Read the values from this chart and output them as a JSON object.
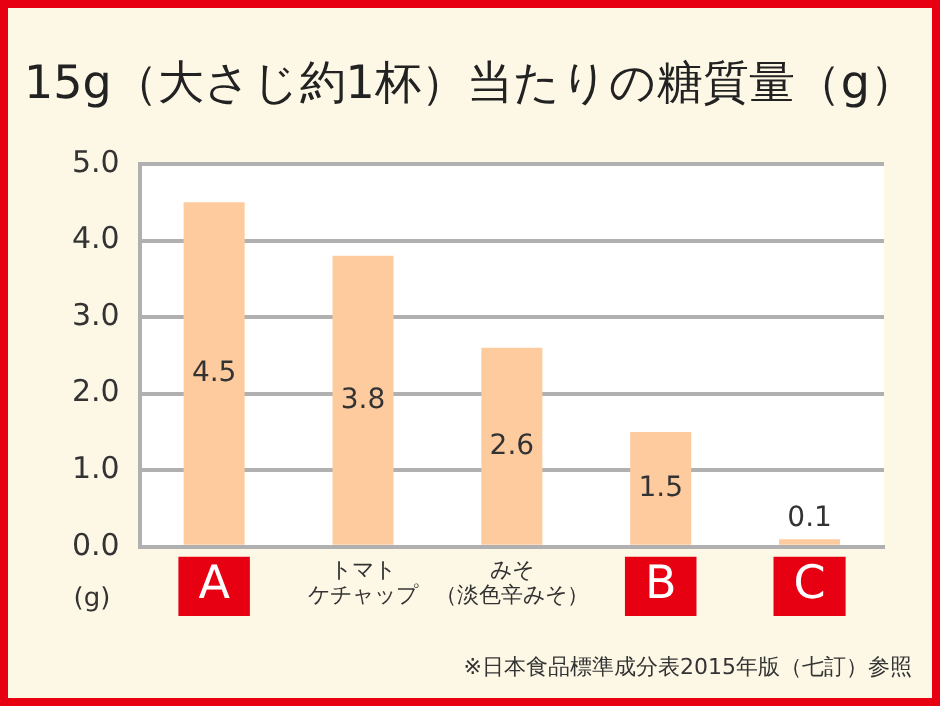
{
  "chart_data": {
    "type": "bar",
    "title": "15g（大さじ約1杯）当たりの糖質量（g）",
    "ylabel": "(g)",
    "categories": [
      "A",
      "トマトケチャップ",
      "みそ（淡色辛みそ）",
      "B",
      "C"
    ],
    "values": [
      4.5,
      3.8,
      2.6,
      1.5,
      0.1
    ],
    "color": "#fecb9f",
    "ylim": [
      0,
      5
    ],
    "yticks": [
      {
        "value": 0,
        "label": "0.0"
      },
      {
        "value": 1,
        "label": "1.0"
      },
      {
        "value": 2,
        "label": "2.0"
      },
      {
        "value": 3,
        "label": "3.0"
      },
      {
        "value": 4,
        "label": "4.0"
      },
      {
        "value": 5,
        "label": "5.0"
      }
    ],
    "grid": "y",
    "legend": false,
    "data_labels": true,
    "annotations": [
      "※日本食品標準成分表2015年版（七訂）参照"
    ]
  }
}
